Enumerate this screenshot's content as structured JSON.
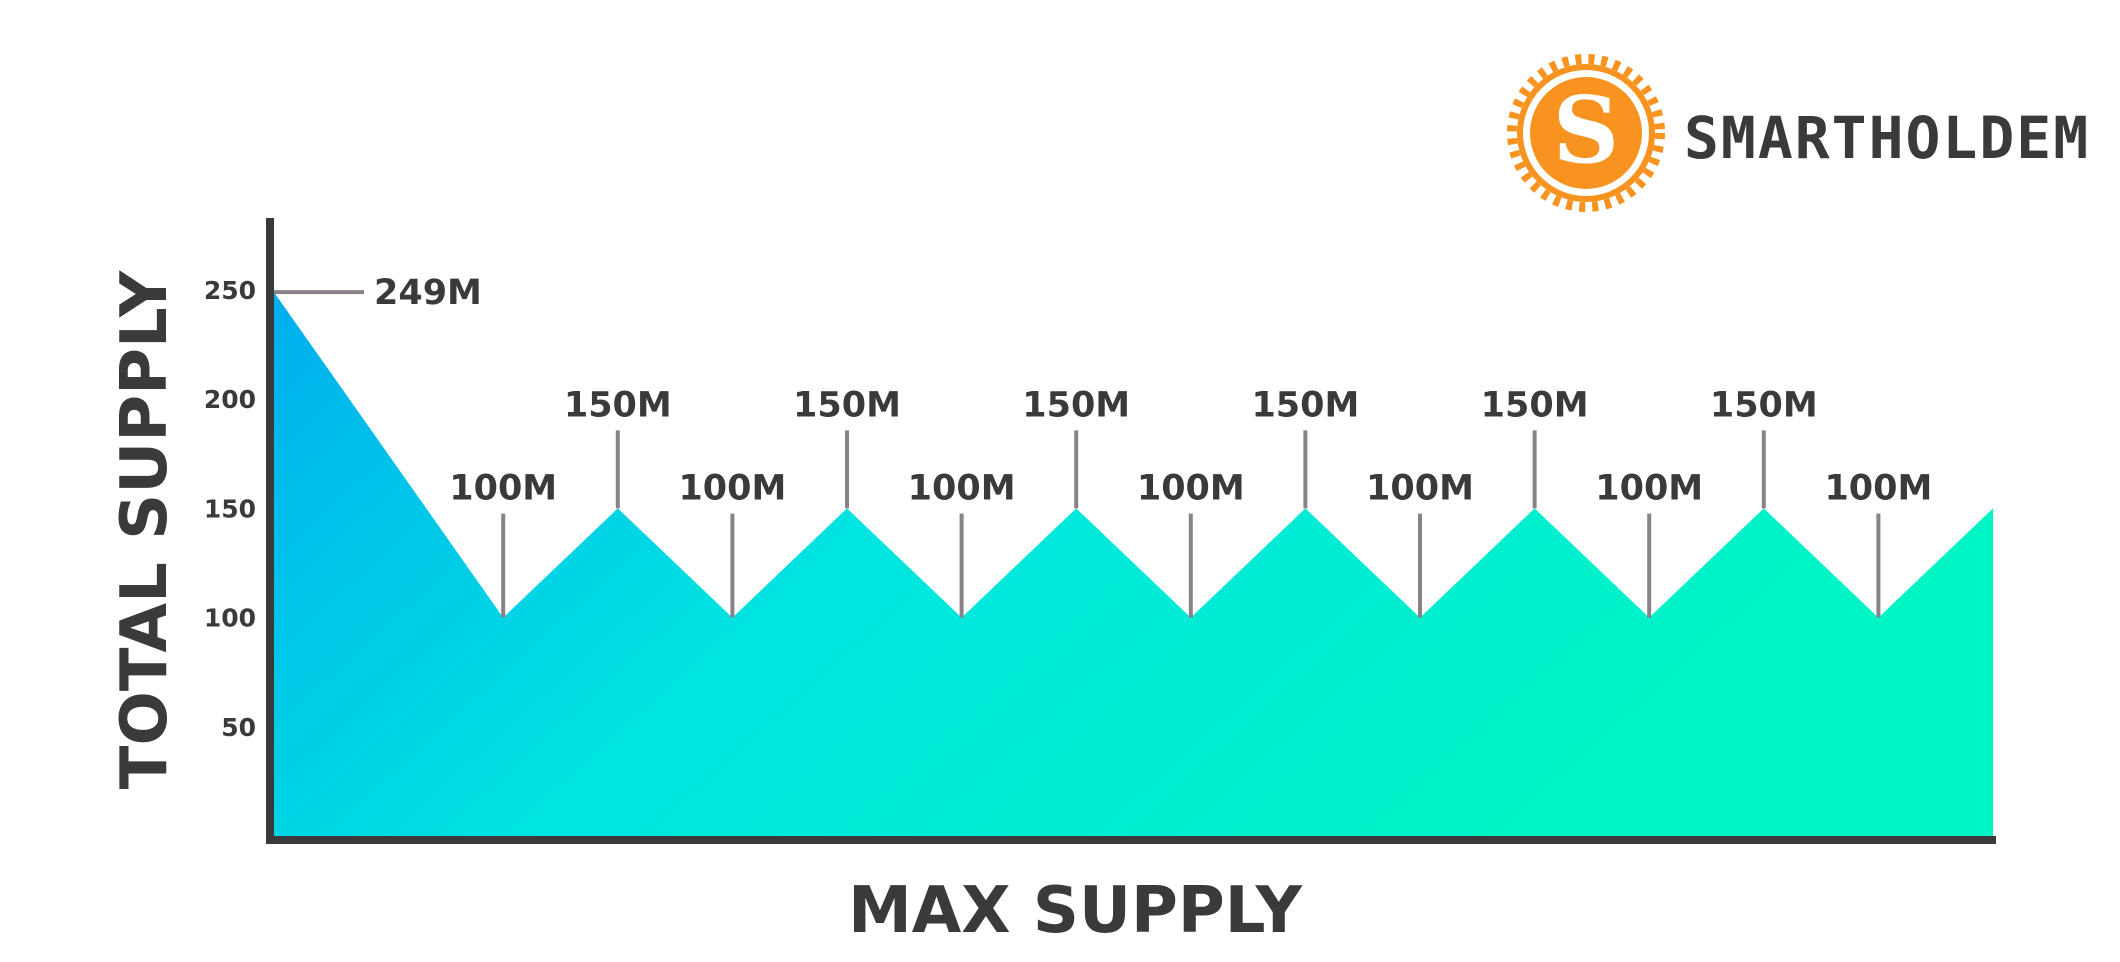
{
  "brand": {
    "name": "SMARTHOLDEM",
    "logo_letter": "S",
    "logo_color": "#f7931e",
    "logo_icon": "smartholdem-seal-icon"
  },
  "chart_data": {
    "type": "area",
    "title": "",
    "xlabel": "MAX SUPPLY",
    "ylabel": "TOTAL SUPPLY",
    "ylim": [
      0,
      270
    ],
    "yticks": [
      50,
      100,
      150,
      200,
      250
    ],
    "grid": false,
    "legend": "none",
    "gradient": [
      "#00aeef",
      "#00e5e0",
      "#00f5c4"
    ],
    "points": [
      {
        "x": 0,
        "y": 249,
        "label": "249M"
      },
      {
        "x": 1,
        "y": 100,
        "label": "100M"
      },
      {
        "x": 1.5,
        "y": 150,
        "label": "150M"
      },
      {
        "x": 2,
        "y": 100,
        "label": "100M"
      },
      {
        "x": 2.5,
        "y": 150,
        "label": "150M"
      },
      {
        "x": 3,
        "y": 100,
        "label": "100M"
      },
      {
        "x": 3.5,
        "y": 150,
        "label": "150M"
      },
      {
        "x": 4,
        "y": 100,
        "label": "100M"
      },
      {
        "x": 4.5,
        "y": 150,
        "label": "150M"
      },
      {
        "x": 5,
        "y": 100,
        "label": "100M"
      },
      {
        "x": 5.5,
        "y": 150,
        "label": "150M"
      },
      {
        "x": 6,
        "y": 100,
        "label": "100M"
      },
      {
        "x": 6.5,
        "y": 150,
        "label": "150M"
      },
      {
        "x": 7,
        "y": 100,
        "label": "100M"
      },
      {
        "x": 7.5,
        "y": 150,
        "label": ""
      }
    ]
  }
}
